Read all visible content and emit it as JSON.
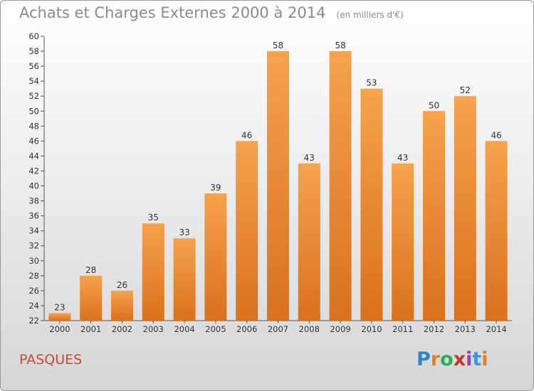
{
  "title": "Achats et Charges Externes 2000 à 2014",
  "subtitle": "(en milliers d'€)",
  "commune": "PASQUES",
  "logo": {
    "text": "Proxiti",
    "colors": [
      "#2e86c1",
      "#e67e22",
      "#27ae60",
      "#c0392b",
      "#8e44ad",
      "#3498db",
      "#e67e22"
    ]
  },
  "chart_data": {
    "type": "bar",
    "title": "Achats et Charges Externes 2000 à 2014",
    "subtitle": "(en milliers d'€)",
    "categories": [
      "2000",
      "2001",
      "2002",
      "2003",
      "2004",
      "2005",
      "2006",
      "2007",
      "2008",
      "2009",
      "2010",
      "2011",
      "2012",
      "2013",
      "2014"
    ],
    "values": [
      23,
      28,
      26,
      35,
      33,
      39,
      46,
      58,
      43,
      58,
      53,
      43,
      50,
      52,
      46
    ],
    "ylim": [
      22,
      60
    ],
    "ytick_step": 2,
    "grid": false,
    "bar_color": "#f0903a"
  }
}
